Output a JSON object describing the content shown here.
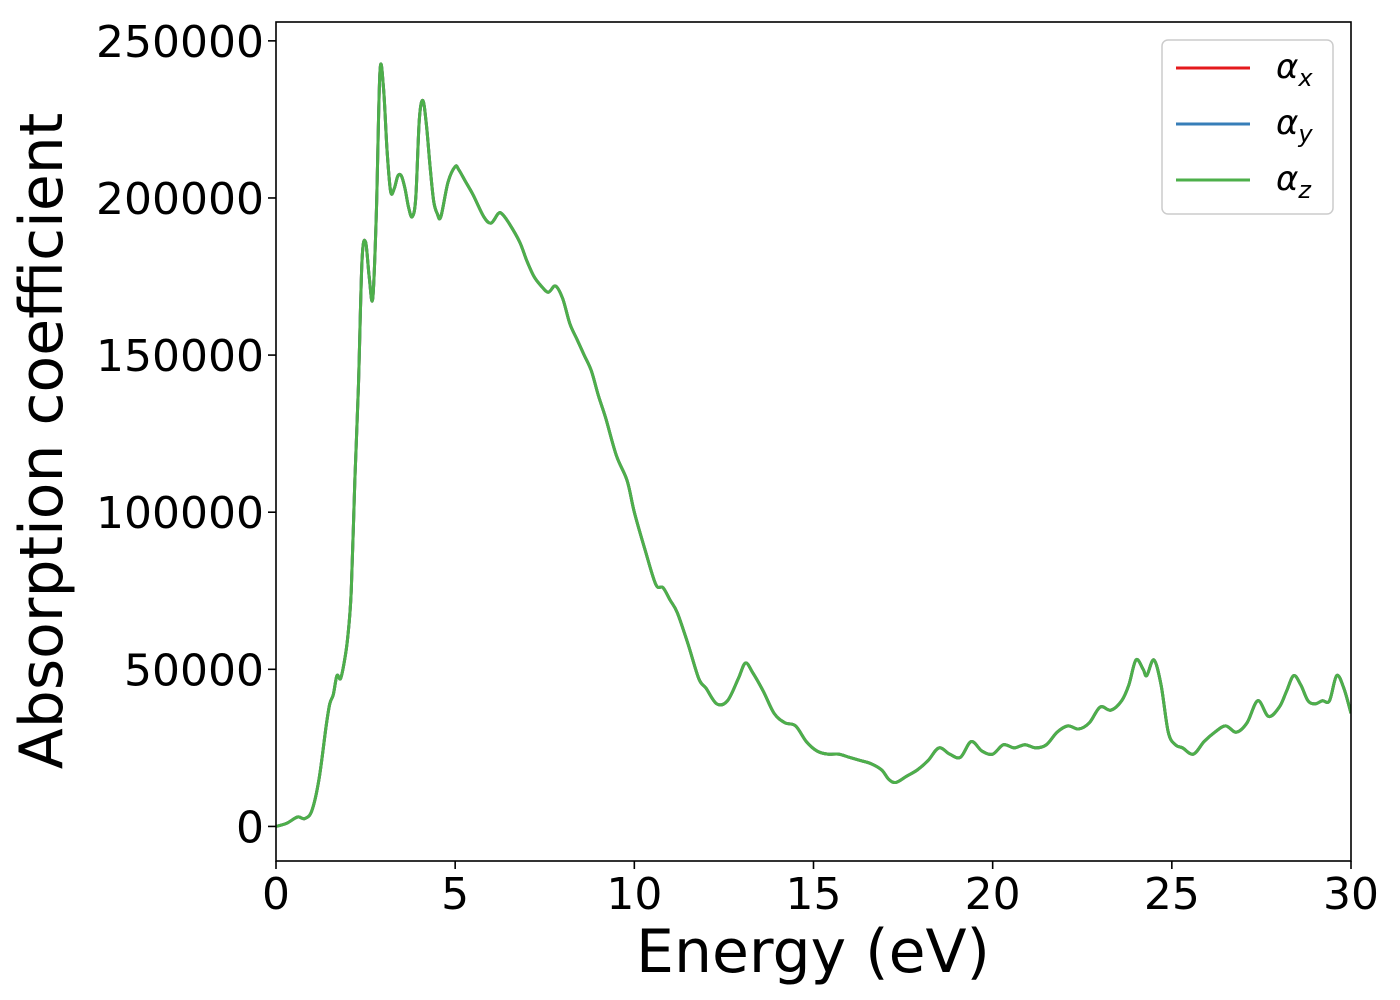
{
  "chart_data": {
    "type": "line",
    "xlabel": "Energy (eV)",
    "ylabel": "Absorption coefficient",
    "xlim": [
      0,
      30
    ],
    "ylim": [
      -11000,
      256000
    ],
    "x_ticks": [
      "0",
      "5",
      "10",
      "15",
      "20",
      "25",
      "30"
    ],
    "y_ticks": [
      "0",
      "50000",
      "100000",
      "150000",
      "200000",
      "250000"
    ],
    "grid": false,
    "legend_position": "top-right",
    "x": [
      0.0,
      0.3,
      0.6,
      0.8,
      1.0,
      1.2,
      1.4,
      1.5,
      1.6,
      1.7,
      1.8,
      1.9,
      2.0,
      2.1,
      2.2,
      2.3,
      2.4,
      2.5,
      2.6,
      2.7,
      2.8,
      2.9,
      3.0,
      3.1,
      3.2,
      3.3,
      3.4,
      3.5,
      3.6,
      3.7,
      3.8,
      3.9,
      4.0,
      4.1,
      4.2,
      4.3,
      4.4,
      4.5,
      4.6,
      4.8,
      5.0,
      5.1,
      5.3,
      5.5,
      5.8,
      6.0,
      6.2,
      6.3,
      6.5,
      6.8,
      7.0,
      7.2,
      7.4,
      7.6,
      7.8,
      8.0,
      8.2,
      8.4,
      8.6,
      8.8,
      9.0,
      9.2,
      9.5,
      9.8,
      10.0,
      10.3,
      10.6,
      10.8,
      11.0,
      11.2,
      11.5,
      11.8,
      12.0,
      12.3,
      12.6,
      12.9,
      13.1,
      13.3,
      13.6,
      13.9,
      14.2,
      14.5,
      14.8,
      15.1,
      15.4,
      15.7,
      16.0,
      16.3,
      16.6,
      16.9,
      17.1,
      17.3,
      17.6,
      17.9,
      18.2,
      18.5,
      18.8,
      19.1,
      19.4,
      19.7,
      20.0,
      20.3,
      20.6,
      20.9,
      21.2,
      21.5,
      21.8,
      22.1,
      22.4,
      22.7,
      23.0,
      23.3,
      23.6,
      23.8,
      24.0,
      24.2,
      24.3,
      24.5,
      24.7,
      24.9,
      25.1,
      25.3,
      25.6,
      25.9,
      26.2,
      26.5,
      26.8,
      27.1,
      27.4,
      27.7,
      28.0,
      28.2,
      28.4,
      28.6,
      28.8,
      29.0,
      29.2,
      29.4,
      29.6,
      29.8,
      30.0
    ],
    "series": [
      {
        "name": "αx",
        "symbol": "α",
        "subscript": "x",
        "color": "#e41a1c",
        "y": [
          0,
          1000,
          3000,
          2500,
          5000,
          15000,
          32000,
          39000,
          42000,
          48000,
          47000,
          52000,
          60000,
          75000,
          110000,
          140000,
          180000,
          186000,
          175000,
          168000,
          195000,
          240000,
          235000,
          215000,
          202000,
          203000,
          207000,
          207000,
          203000,
          197000,
          194000,
          200000,
          225000,
          231000,
          223000,
          210000,
          199000,
          195000,
          194000,
          205000,
          210000,
          209000,
          205000,
          201000,
          194000,
          192000,
          195000,
          195000,
          192000,
          186000,
          180000,
          175000,
          172000,
          170000,
          172000,
          168000,
          160000,
          155000,
          150000,
          145000,
          137000,
          130000,
          118000,
          110000,
          100000,
          88000,
          77000,
          76000,
          72000,
          68000,
          58000,
          47000,
          44000,
          39000,
          40000,
          47000,
          52000,
          49000,
          43000,
          36000,
          33000,
          32000,
          27000,
          24000,
          23000,
          23000,
          22000,
          21000,
          20000,
          18000,
          15000,
          14000,
          16000,
          18000,
          21000,
          25000,
          23000,
          22000,
          27000,
          24000,
          23000,
          26000,
          25000,
          26000,
          25000,
          26000,
          30000,
          32000,
          31000,
          33000,
          38000,
          37000,
          40000,
          45000,
          53000,
          50000,
          48000,
          53000,
          45000,
          30000,
          26000,
          25000,
          23000,
          27000,
          30000,
          32000,
          30000,
          33000,
          40000,
          35000,
          38000,
          43000,
          48000,
          45000,
          40000,
          39000,
          40000,
          40000,
          48000,
          44000,
          36000
        ]
      },
      {
        "name": "αy",
        "symbol": "α",
        "subscript": "y",
        "color": "#377eb8",
        "y": [
          0,
          1000,
          3000,
          2500,
          5000,
          15000,
          32000,
          39000,
          42000,
          48000,
          47000,
          52000,
          60000,
          75000,
          110000,
          140000,
          180000,
          186000,
          175000,
          168000,
          195000,
          240000,
          235000,
          215000,
          202000,
          203000,
          207000,
          207000,
          203000,
          197000,
          194000,
          200000,
          225000,
          231000,
          223000,
          210000,
          199000,
          195000,
          194000,
          205000,
          210000,
          209000,
          205000,
          201000,
          194000,
          192000,
          195000,
          195000,
          192000,
          186000,
          180000,
          175000,
          172000,
          170000,
          172000,
          168000,
          160000,
          155000,
          150000,
          145000,
          137000,
          130000,
          118000,
          110000,
          100000,
          88000,
          77000,
          76000,
          72000,
          68000,
          58000,
          47000,
          44000,
          39000,
          40000,
          47000,
          52000,
          49000,
          43000,
          36000,
          33000,
          32000,
          27000,
          24000,
          23000,
          23000,
          22000,
          21000,
          20000,
          18000,
          15000,
          14000,
          16000,
          18000,
          21000,
          25000,
          23000,
          22000,
          27000,
          24000,
          23000,
          26000,
          25000,
          26000,
          25000,
          26000,
          30000,
          32000,
          31000,
          33000,
          38000,
          37000,
          40000,
          45000,
          53000,
          50000,
          48000,
          53000,
          45000,
          30000,
          26000,
          25000,
          23000,
          27000,
          30000,
          32000,
          30000,
          33000,
          40000,
          35000,
          38000,
          43000,
          48000,
          45000,
          40000,
          39000,
          40000,
          40000,
          48000,
          44000,
          36000
        ]
      },
      {
        "name": "αz",
        "symbol": "α",
        "subscript": "z",
        "color": "#4daf4a",
        "y": [
          0,
          1000,
          3000,
          2500,
          5000,
          15000,
          32000,
          39000,
          42000,
          48000,
          47000,
          52000,
          60000,
          75000,
          110000,
          140000,
          180000,
          186000,
          175000,
          168000,
          195000,
          240000,
          235000,
          215000,
          202000,
          203000,
          207000,
          207000,
          203000,
          197000,
          194000,
          200000,
          225000,
          231000,
          223000,
          210000,
          199000,
          195000,
          194000,
          205000,
          210000,
          209000,
          205000,
          201000,
          194000,
          192000,
          195000,
          195000,
          192000,
          186000,
          180000,
          175000,
          172000,
          170000,
          172000,
          168000,
          160000,
          155000,
          150000,
          145000,
          137000,
          130000,
          118000,
          110000,
          100000,
          88000,
          77000,
          76000,
          72000,
          68000,
          58000,
          47000,
          44000,
          39000,
          40000,
          47000,
          52000,
          49000,
          43000,
          36000,
          33000,
          32000,
          27000,
          24000,
          23000,
          23000,
          22000,
          21000,
          20000,
          18000,
          15000,
          14000,
          16000,
          18000,
          21000,
          25000,
          23000,
          22000,
          27000,
          24000,
          23000,
          26000,
          25000,
          26000,
          25000,
          26000,
          30000,
          32000,
          31000,
          33000,
          38000,
          37000,
          40000,
          45000,
          53000,
          50000,
          48000,
          53000,
          45000,
          30000,
          26000,
          25000,
          23000,
          27000,
          30000,
          32000,
          30000,
          33000,
          40000,
          35000,
          38000,
          43000,
          48000,
          45000,
          40000,
          39000,
          40000,
          40000,
          48000,
          44000,
          36000
        ]
      }
    ]
  }
}
